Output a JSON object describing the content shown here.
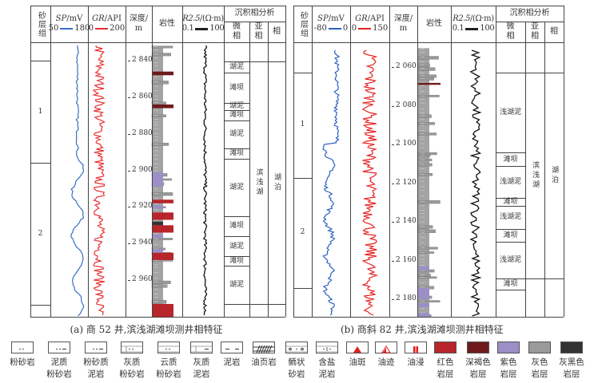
{
  "header": {
    "sand_group": "砂层组",
    "depth": "深度/",
    "depth_unit": "m",
    "lithology": "岩性",
    "facies_analysis": "沉积相分析",
    "microfacies": "微相",
    "subfacies": "亚相",
    "facies": "相"
  },
  "panels": [
    {
      "caption": "(a) 商 52 井,滨浅湖滩坝测井相特征",
      "sp": {
        "label": "SP",
        "unit": "/mV",
        "min": "50",
        "max": "180",
        "color": "#3a6fc4"
      },
      "gr": {
        "label": "GR",
        "unit": "/API",
        "min": "0",
        "max": "200",
        "color": "#e83030"
      },
      "res": {
        "label": "R2.5",
        "unit": "/(Ω·m)",
        "min": "0.1",
        "max": "100"
      },
      "depth_range": [
        2830,
        2980
      ],
      "depth_ticks": [
        "2 840",
        "2 860",
        "2 880",
        "2 900",
        "2 920",
        "2 940",
        "2 960"
      ],
      "depth_tick_values": [
        2840,
        2860,
        2880,
        2900,
        2920,
        2940,
        2960
      ],
      "sand_groups": [
        {
          "label": "1",
          "from": 2840,
          "to": 2896
        },
        {
          "label": "2",
          "from": 2896,
          "to": 2973.5
        }
      ],
      "microfacies": [
        {
          "label": "湖泥",
          "from": 2840.4,
          "to": 2846.5
        },
        {
          "label": "滩坝",
          "from": 2846.5,
          "to": 2863
        },
        {
          "label": "湖泥",
          "from": 2863,
          "to": 2867
        },
        {
          "label": "滩坝",
          "from": 2867,
          "to": 2872.6
        },
        {
          "label": "湖泥",
          "from": 2872.6,
          "to": 2888
        },
        {
          "label": "滩坝",
          "from": 2888,
          "to": 2893.5
        },
        {
          "label": "湖泥",
          "from": 2893.5,
          "to": 2925
        },
        {
          "label": "滩坝",
          "from": 2925,
          "to": 2936
        },
        {
          "label": "湖泥",
          "from": 2936,
          "to": 2947
        },
        {
          "label": "滩坝",
          "from": 2947,
          "to": 2952
        },
        {
          "label": "湖泥",
          "from": 2952,
          "to": 2973
        }
      ],
      "subfacies": {
        "label": "滨浅湖",
        "from": 2840.4,
        "to": 2973
      },
      "facies": {
        "label": "湖泊",
        "from": 2840.4,
        "to": 2973
      },
      "colored_layers": [
        {
          "color": "dark-brown",
          "from": 2846,
          "to": 2848
        },
        {
          "color": "dark-brown",
          "from": 2864,
          "to": 2866
        },
        {
          "color": "purple",
          "from": 2901,
          "to": 2909
        },
        {
          "color": "red",
          "from": 2916,
          "to": 2918
        },
        {
          "color": "purple",
          "from": 2919,
          "to": 2921
        },
        {
          "color": "red",
          "from": 2923,
          "to": 2927
        },
        {
          "color": "black",
          "from": 2928,
          "to": 2930
        },
        {
          "color": "red",
          "from": 2930,
          "to": 2934
        },
        {
          "color": "purple",
          "from": 2935,
          "to": 2937
        },
        {
          "color": "purple",
          "from": 2943,
          "to": 2945
        },
        {
          "color": "red",
          "from": 2945,
          "to": 2949
        },
        {
          "color": "red",
          "from": 2973,
          "to": 2980
        }
      ]
    },
    {
      "caption": "(b) 商斜 82 井,滨浅湖滩坝测井相特征",
      "sp": {
        "label": "SP",
        "unit": "/mV",
        "min": "-80",
        "max": "0",
        "color": "#2a5fc0"
      },
      "gr": {
        "label": "GR",
        "unit": "/API",
        "min": "0",
        "max": "150",
        "color": "#e82020"
      },
      "res": {
        "label": "R2.5",
        "unit": "/(Ω·m)",
        "min": "0.1",
        "max": "100"
      },
      "depth_range": [
        2047,
        2189
      ],
      "depth_ticks": [
        "2 060",
        "2 080",
        "2 100",
        "2 120",
        "2 140",
        "2 160",
        "2 180"
      ],
      "depth_tick_values": [
        2060,
        2080,
        2100,
        2120,
        2140,
        2160,
        2180
      ],
      "sand_groups": [
        {
          "label": "1",
          "from": 2062.5,
          "to": 2117
        },
        {
          "label": "2",
          "from": 2117,
          "to": 2174
        }
      ],
      "microfacies": [
        {
          "label": "浅湖泥",
          "from": 2062.5,
          "to": 2104
        },
        {
          "label": "滩坝",
          "from": 2104,
          "to": 2111
        },
        {
          "label": "浅湖泥",
          "from": 2111,
          "to": 2127.5
        },
        {
          "label": "滩坝",
          "from": 2127.5,
          "to": 2131.5
        },
        {
          "label": "浅湖泥",
          "from": 2131.5,
          "to": 2143.5
        },
        {
          "label": "滩坝",
          "from": 2143.5,
          "to": 2150
        },
        {
          "label": "浅湖泥",
          "from": 2150,
          "to": 2169
        },
        {
          "label": "滩坝",
          "from": 2169,
          "to": 2175
        }
      ],
      "subfacies": {
        "label": "滨浅湖",
        "from": 2062.5,
        "to": 2169
      },
      "facies": {
        "label": "湖泊",
        "from": 2062.5,
        "to": 2169
      },
      "colored_layers": [
        {
          "color": "dark-brown",
          "from": 2068,
          "to": 2069
        },
        {
          "color": "purple",
          "from": 2163,
          "to": 2165
        },
        {
          "color": "purple",
          "from": 2174,
          "to": 2180
        },
        {
          "color": "purple",
          "from": 2182,
          "to": 2184
        },
        {
          "color": "purple",
          "from": 2187,
          "to": 2189
        }
      ]
    }
  ],
  "legend": [
    {
      "label": "粉砂岩",
      "pattern": "dots"
    },
    {
      "label": "泥质粉砂岩",
      "pattern": "dots-dash"
    },
    {
      "label": "粉砂质泥岩",
      "pattern": "dot-dash"
    },
    {
      "label": "灰质粉砂岩",
      "pattern": "lime-dots"
    },
    {
      "label": "云质粉砂岩",
      "pattern": "dolo-dots"
    },
    {
      "label": "灰质泥岩",
      "pattern": "lime-dash"
    },
    {
      "label": "泥岩",
      "pattern": "dash"
    },
    {
      "label": "油页岩",
      "pattern": "shale"
    },
    {
      "label": "鲕状砂岩",
      "pattern": "oolite"
    },
    {
      "label": "含盐泥岩",
      "pattern": "salt"
    },
    {
      "label": "油斑",
      "pattern": "oil-spot"
    },
    {
      "label": "油迹",
      "pattern": "oil-trace"
    },
    {
      "label": "油浸",
      "pattern": "oil-immersed"
    },
    {
      "label": "红色岩层",
      "pattern": "fill",
      "color": "#b8252b"
    },
    {
      "label": "深褐色岩层",
      "pattern": "fill",
      "color": "#6e1a1c"
    },
    {
      "label": "紫色岩层",
      "pattern": "fill",
      "color": "#9b8fc6"
    },
    {
      "label": "灰色岩层",
      "pattern": "fill",
      "color": "#9a9a9a"
    },
    {
      "label": "灰黑色岩层",
      "pattern": "fill",
      "color": "#333333"
    }
  ],
  "colors": {
    "red": "#b8252b",
    "dark-brown": "#6e1a1c",
    "purple": "#9b8fc6",
    "gray": "#9a9a9a",
    "black": "#333333"
  }
}
